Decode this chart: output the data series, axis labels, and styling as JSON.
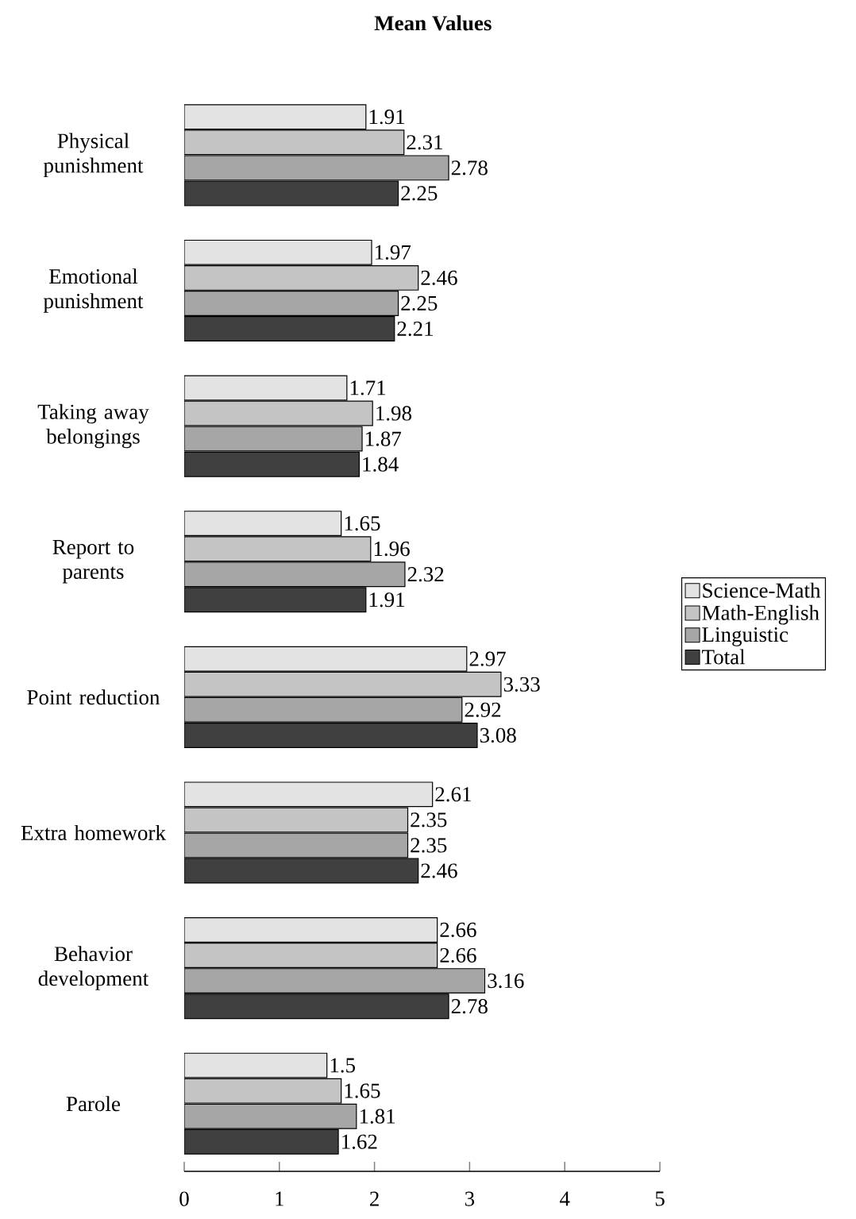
{
  "chart_data": {
    "type": "bar",
    "orientation": "horizontal",
    "title": "Mean Values",
    "categories": [
      "Physical punishment",
      "Emotional punishment",
      "Taking away belongings",
      "Report to parents",
      "Point reduction",
      "Extra homework",
      "Behavior development",
      "Parole"
    ],
    "series": [
      {
        "name": "Science-Math",
        "color": "#e3e3e3",
        "values": [
          1.91,
          1.97,
          1.71,
          1.65,
          2.97,
          2.61,
          2.66,
          1.5
        ]
      },
      {
        "name": "Math-English",
        "color": "#c4c4c4",
        "values": [
          2.31,
          2.46,
          1.98,
          1.96,
          3.33,
          2.35,
          2.66,
          1.65
        ]
      },
      {
        "name": "Linguistic",
        "color": "#a6a6a6",
        "values": [
          2.78,
          2.25,
          1.87,
          2.32,
          2.92,
          2.35,
          3.16,
          1.81
        ]
      },
      {
        "name": "Total",
        "color": "#404040",
        "values": [
          2.25,
          2.21,
          1.84,
          1.91,
          3.08,
          2.46,
          2.78,
          1.62
        ]
      }
    ],
    "xlim": [
      0,
      5
    ],
    "xticks": [
      0,
      1,
      2,
      3,
      4,
      5
    ],
    "data_labels": true,
    "legend": "right",
    "grid": false
  }
}
